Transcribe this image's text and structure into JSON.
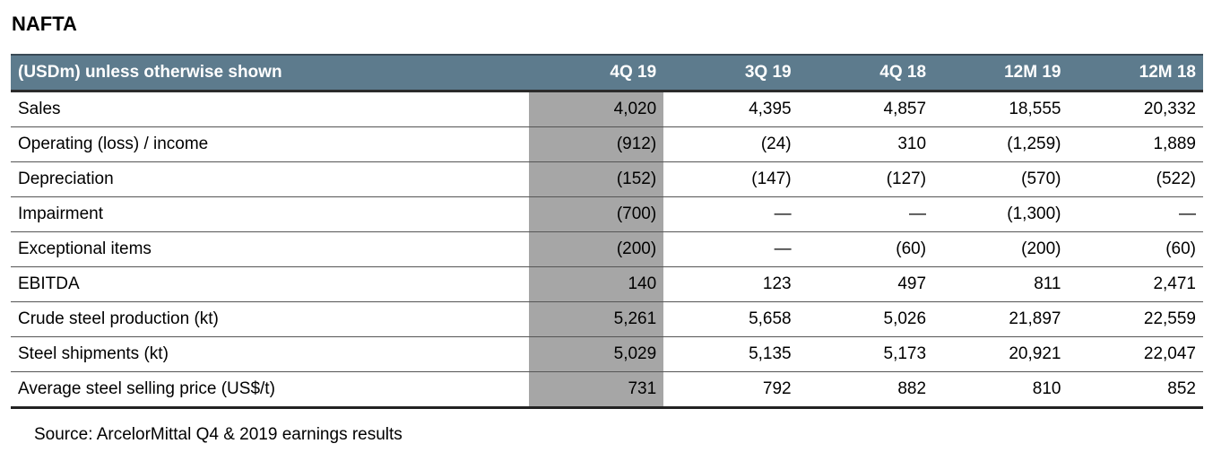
{
  "title": "NAFTA",
  "table": {
    "header": [
      "(USDm) unless otherwise shown",
      "4Q 19",
      "3Q 19",
      "4Q 18",
      "12M 19",
      "12M 18"
    ],
    "rows": [
      [
        "Sales",
        "4,020",
        "4,395",
        "4,857",
        "18,555",
        "20,332"
      ],
      [
        "Operating (loss) / income",
        "(912)",
        "(24)",
        "310",
        "(1,259)",
        "1,889"
      ],
      [
        "Depreciation",
        "(152)",
        "(147)",
        "(127)",
        "(570)",
        "(522)"
      ],
      [
        "Impairment",
        "(700)",
        "—",
        "—",
        "(1,300)",
        "—"
      ],
      [
        "Exceptional items",
        "(200)",
        "—",
        "(60)",
        "(200)",
        "(60)"
      ],
      [
        "EBITDA",
        "140",
        "123",
        "497",
        "811",
        "2,471"
      ],
      [
        "Crude steel production (kt)",
        "5,261",
        "5,658",
        "5,026",
        "21,897",
        "22,559"
      ],
      [
        "Steel shipments (kt)",
        "5,029",
        "5,135",
        "5,173",
        "20,921",
        "22,047"
      ],
      [
        "Average steel selling price (US$/t)",
        "731",
        "792",
        "882",
        "810",
        "852"
      ]
    ]
  },
  "source": "Source: ArcelorMittal Q4 & 2019 earnings results"
}
